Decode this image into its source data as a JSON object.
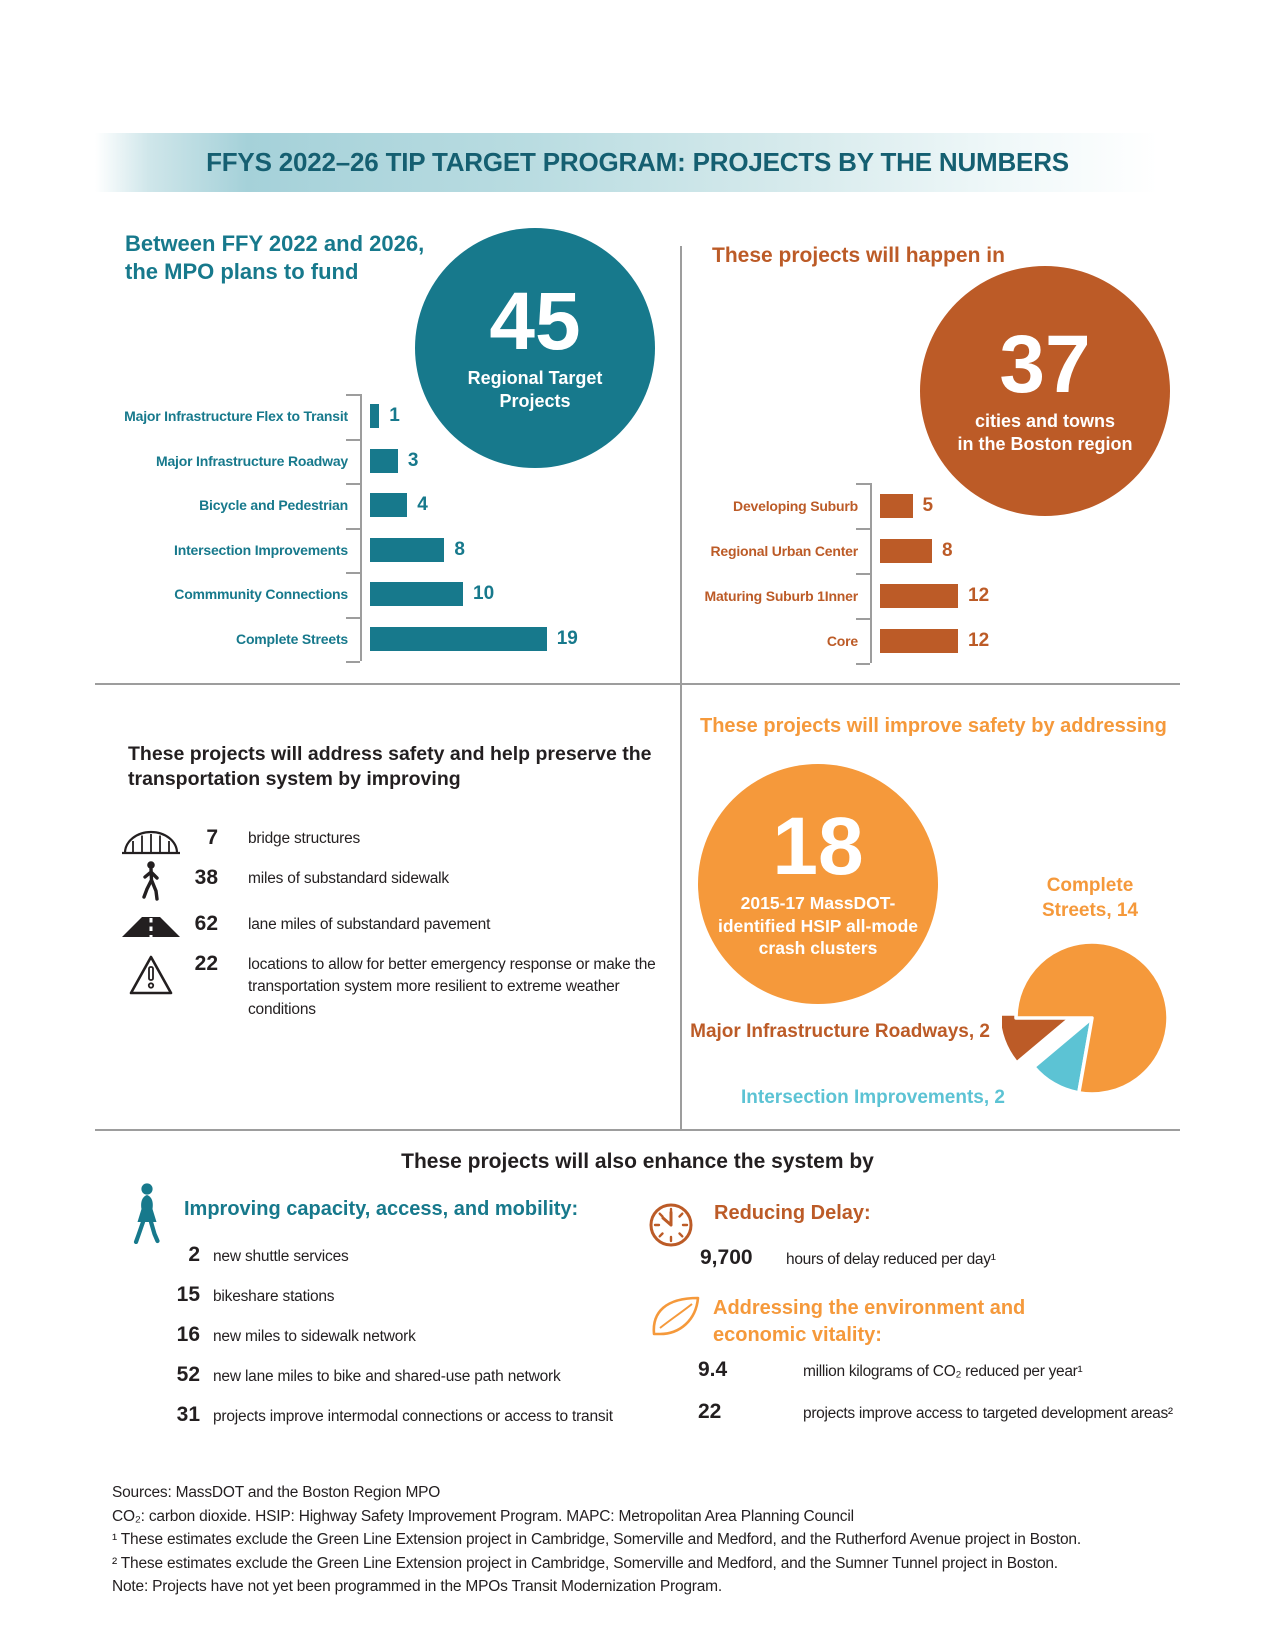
{
  "banner": {
    "title": "FFYS 2022–26 TIP TARGET PROGRAM: PROJECTS BY THE NUMBERS"
  },
  "colors": {
    "teal": "#17798C",
    "rust": "#BC5B27",
    "orange": "#F5993B",
    "cyan": "#5CC3D4",
    "title_teal": "#155F71",
    "divider_gray": "#9D9D9D"
  },
  "funding": {
    "heading_line1": "Between FFY 2022 and 2026,",
    "heading_line2": "the MPO plans to fund",
    "circle_number": "45",
    "circle_label_line1": "Regional Target",
    "circle_label_line2": "Projects"
  },
  "location": {
    "heading": "These projects will happen in",
    "circle_number": "37",
    "circle_label_line1": "cities and towns",
    "circle_label_line2": "in the Boston region"
  },
  "safety_preserve": {
    "heading_line1": "These projects will address safety and help preserve the",
    "heading_line2": "transportation system by improving",
    "items": [
      {
        "icon": "bridge-icon",
        "value": "7",
        "text": "bridge structures"
      },
      {
        "icon": "pedestrian-icon",
        "value": "38",
        "text": "miles of substandard sidewalk"
      },
      {
        "icon": "road-icon",
        "value": "62",
        "text": "lane miles of substandard pavement"
      },
      {
        "icon": "warning-icon",
        "value": "22",
        "text": "locations to allow for better emergency response or make the transportation system more resilient to extreme weather conditions"
      }
    ]
  },
  "safety_improve": {
    "heading": "These projects will improve safety by addressing",
    "circle_number": "18",
    "circle_label_line1": "2015-17 MassDOT-",
    "circle_label_line2": "identified HSIP all-mode",
    "circle_label_line3": "crash clusters"
  },
  "enhance": {
    "heading": "These projects will also enhance the system by",
    "capacity_heading": "Improving capacity, access, and mobility:",
    "capacity_items": [
      {
        "value": "2",
        "text": "new shuttle services"
      },
      {
        "value": "15",
        "text": "bikeshare stations"
      },
      {
        "value": "16",
        "text": "new miles to sidewalk network"
      },
      {
        "value": "52",
        "text": "new lane miles to bike and shared-use path network"
      },
      {
        "value": "31",
        "text": "projects improve intermodal connections or access to transit"
      }
    ],
    "delay_heading": "Reducing Delay:",
    "delay_value": "9,700",
    "delay_text": "hours of delay reduced per day¹",
    "environment_heading_line1": "Addressing the environment and",
    "environment_heading_line2": "economic vitality:",
    "environment_items": [
      {
        "value": "9.4",
        "text": "million kilograms of CO₂ reduced per year¹"
      },
      {
        "value": "22",
        "text": "projects improve access to targeted development areas²"
      }
    ]
  },
  "footer": {
    "lines": [
      "Sources: MassDOT and the Boston Region MPO",
      "CO₂: carbon dioxide. HSIP: Highway Safety Improvement Program. MAPC: Metropolitan Area Planning Council",
      "¹ These estimates exclude the Green Line Extension project in Cambridge, Somerville and Medford, and the Rutherford Avenue project in Boston.",
      "² These estimates exclude the Green Line Extension project in Cambridge, Somerville and Medford, and the Sumner Tunnel project in Boston.",
      "Note: Projects have not yet been programmed in the MPOs Transit Modernization Program."
    ]
  },
  "chart_data": [
    {
      "type": "bar",
      "orientation": "horizontal",
      "title": "45 Regional Target Projects by investment program",
      "categories": [
        "Major Infrastructure Flex to Transit",
        "Major Infrastructure Roadway",
        "Bicycle and Pedestrian",
        "Intersection Improvements",
        "Commmunity Connections",
        "Complete Streets"
      ],
      "values": [
        1,
        3,
        4,
        8,
        10,
        19
      ],
      "bar_color": "#17798C",
      "xlim": [
        0,
        20
      ],
      "grid": false,
      "legend": "none"
    },
    {
      "type": "bar",
      "orientation": "horizontal",
      "title": "37 cities and towns in the Boston region by community type",
      "categories": [
        "Developing Suburb",
        "Regional Urban Center",
        "Maturing Suburb 1Inner",
        "Core"
      ],
      "values": [
        5,
        8,
        12,
        12
      ],
      "bar_color": "#BC5B27",
      "xlim": [
        0,
        13
      ],
      "grid": false,
      "legend": "none"
    },
    {
      "type": "pie",
      "title": "18 2015-17 MassDOT-identified HSIP all-mode crash clusters by program",
      "labels": [
        "Complete Streets, 14",
        "Major Infrastructure Roadways, 2",
        "Intersection Improvements, 2"
      ],
      "values": [
        14,
        2,
        2
      ],
      "colors": [
        "#F5993B",
        "#BC5B27",
        "#5CC3D4"
      ],
      "legend": "labels outside slices"
    }
  ]
}
